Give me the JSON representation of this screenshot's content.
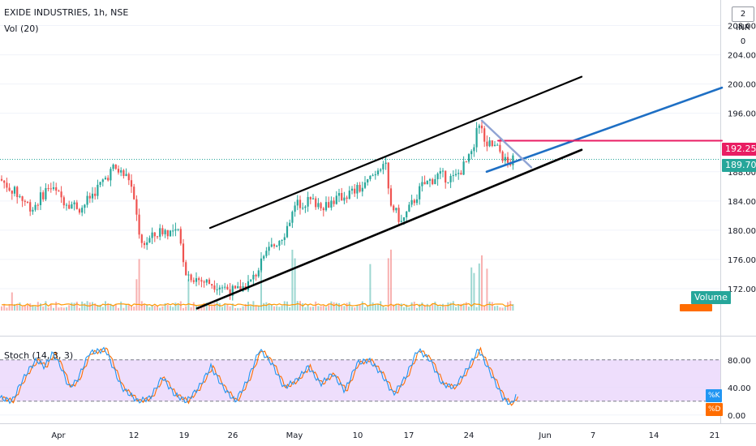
{
  "header": {
    "symbol_line": "EXIDE INDUSTRIES, 1h, NSE",
    "volume_legend": "Vol (20)",
    "stoch_legend": "Stoch (14, 3, 3)",
    "currency": "INR",
    "log_button": "2 INR 0"
  },
  "price_axis": {
    "ticks": [
      "208.00",
      "204.00",
      "200.00",
      "196.00",
      "188.00",
      "184.00",
      "180.00",
      "176.00",
      "172.00"
    ],
    "ylim": [
      169,
      211.5
    ]
  },
  "stoch_axis": {
    "ticks": [
      "80.00",
      "40.00",
      "0.00"
    ],
    "ylim": [
      -12,
      108
    ],
    "upper_band": 80,
    "lower_band": 20
  },
  "time_axis": {
    "labels": [
      "Apr",
      "12",
      "19",
      "26",
      "May",
      "10",
      "17",
      "24",
      "Jun",
      "7",
      "14",
      "21"
    ]
  },
  "labels": {
    "price_tag_1": "192.25",
    "price_tag_2": "189.70",
    "volume_tag": "Volume",
    "k_tag": "%K",
    "d_tag": "%D"
  },
  "colors": {
    "up": "#26a69a",
    "down": "#ef5350",
    "vol_ma": "#ff9800",
    "stoch_k": "#2196f3",
    "stoch_d": "#ff6d00",
    "stoch_band": "#e8d3fb",
    "channel_upper": "#000000",
    "channel_lower": "#000000",
    "trend": "#1e6fc4",
    "horizontal": "#e91e63",
    "pullback": "#90a4d4",
    "last_price": "#26a69a"
  },
  "chart_data": {
    "type": "candlestick",
    "title": "EXIDE INDUSTRIES, 1h, NSE",
    "price_anchors": [
      [
        0,
        187
      ],
      [
        40,
        183
      ],
      [
        60,
        186
      ],
      [
        80,
        184
      ],
      [
        100,
        183
      ],
      [
        140,
        188.5
      ],
      [
        160,
        187
      ],
      [
        168,
        182
      ],
      [
        175,
        178
      ],
      [
        200,
        180
      ],
      [
        220,
        179.5
      ],
      [
        230,
        174
      ],
      [
        250,
        173
      ],
      [
        270,
        172.5
      ],
      [
        290,
        171.5
      ],
      [
        310,
        173
      ],
      [
        330,
        177
      ],
      [
        350,
        179.5
      ],
      [
        365,
        183.5
      ],
      [
        380,
        184
      ],
      [
        400,
        183.5
      ],
      [
        430,
        185
      ],
      [
        450,
        186
      ],
      [
        475,
        190
      ],
      [
        480,
        184
      ],
      [
        495,
        181
      ],
      [
        520,
        186
      ],
      [
        540,
        187.5
      ],
      [
        560,
        187
      ],
      [
        580,
        190
      ],
      [
        590,
        194.5
      ],
      [
        600,
        192
      ],
      [
        615,
        191
      ],
      [
        625,
        189
      ],
      [
        635,
        189.7
      ]
    ],
    "candle_step": 3.2,
    "volume_spike_x": [
      16,
      170,
      232,
      323,
      362,
      456,
      480,
      583,
      592,
      600
    ],
    "drawings": [
      {
        "name": "upper-channel",
        "from": [
          259,
          180.3
        ],
        "to": [
          717,
          201.0
        ]
      },
      {
        "name": "lower-channel",
        "from": [
          243,
          169.3
        ],
        "to": [
          717,
          191.0
        ]
      },
      {
        "name": "trend-line",
        "from": [
          600,
          188.0
        ],
        "to": [
          890,
          199.5
        ]
      },
      {
        "name": "horizontal-line",
        "from": [
          614,
          192.25
        ],
        "to": [
          890,
          192.25
        ]
      },
      {
        "name": "pullback-line",
        "from": [
          594,
          195.0
        ],
        "to": [
          655,
          188.6
        ]
      }
    ],
    "stoch_anchors": [
      [
        0,
        25
      ],
      [
        15,
        20
      ],
      [
        25,
        45
      ],
      [
        35,
        65
      ],
      [
        45,
        80
      ],
      [
        55,
        70
      ],
      [
        65,
        90
      ],
      [
        75,
        70
      ],
      [
        85,
        40
      ],
      [
        95,
        50
      ],
      [
        110,
        90
      ],
      [
        130,
        95
      ],
      [
        150,
        40
      ],
      [
        170,
        20
      ],
      [
        185,
        25
      ],
      [
        200,
        55
      ],
      [
        215,
        30
      ],
      [
        230,
        20
      ],
      [
        245,
        40
      ],
      [
        260,
        70
      ],
      [
        275,
        40
      ],
      [
        290,
        20
      ],
      [
        305,
        50
      ],
      [
        320,
        95
      ],
      [
        335,
        75
      ],
      [
        350,
        40
      ],
      [
        365,
        50
      ],
      [
        380,
        70
      ],
      [
        395,
        45
      ],
      [
        410,
        60
      ],
      [
        425,
        35
      ],
      [
        440,
        75
      ],
      [
        455,
        80
      ],
      [
        470,
        60
      ],
      [
        485,
        30
      ],
      [
        500,
        55
      ],
      [
        515,
        95
      ],
      [
        530,
        80
      ],
      [
        545,
        45
      ],
      [
        560,
        40
      ],
      [
        575,
        65
      ],
      [
        590,
        95
      ],
      [
        605,
        60
      ],
      [
        620,
        25
      ],
      [
        630,
        15
      ],
      [
        637,
        30
      ]
    ]
  }
}
